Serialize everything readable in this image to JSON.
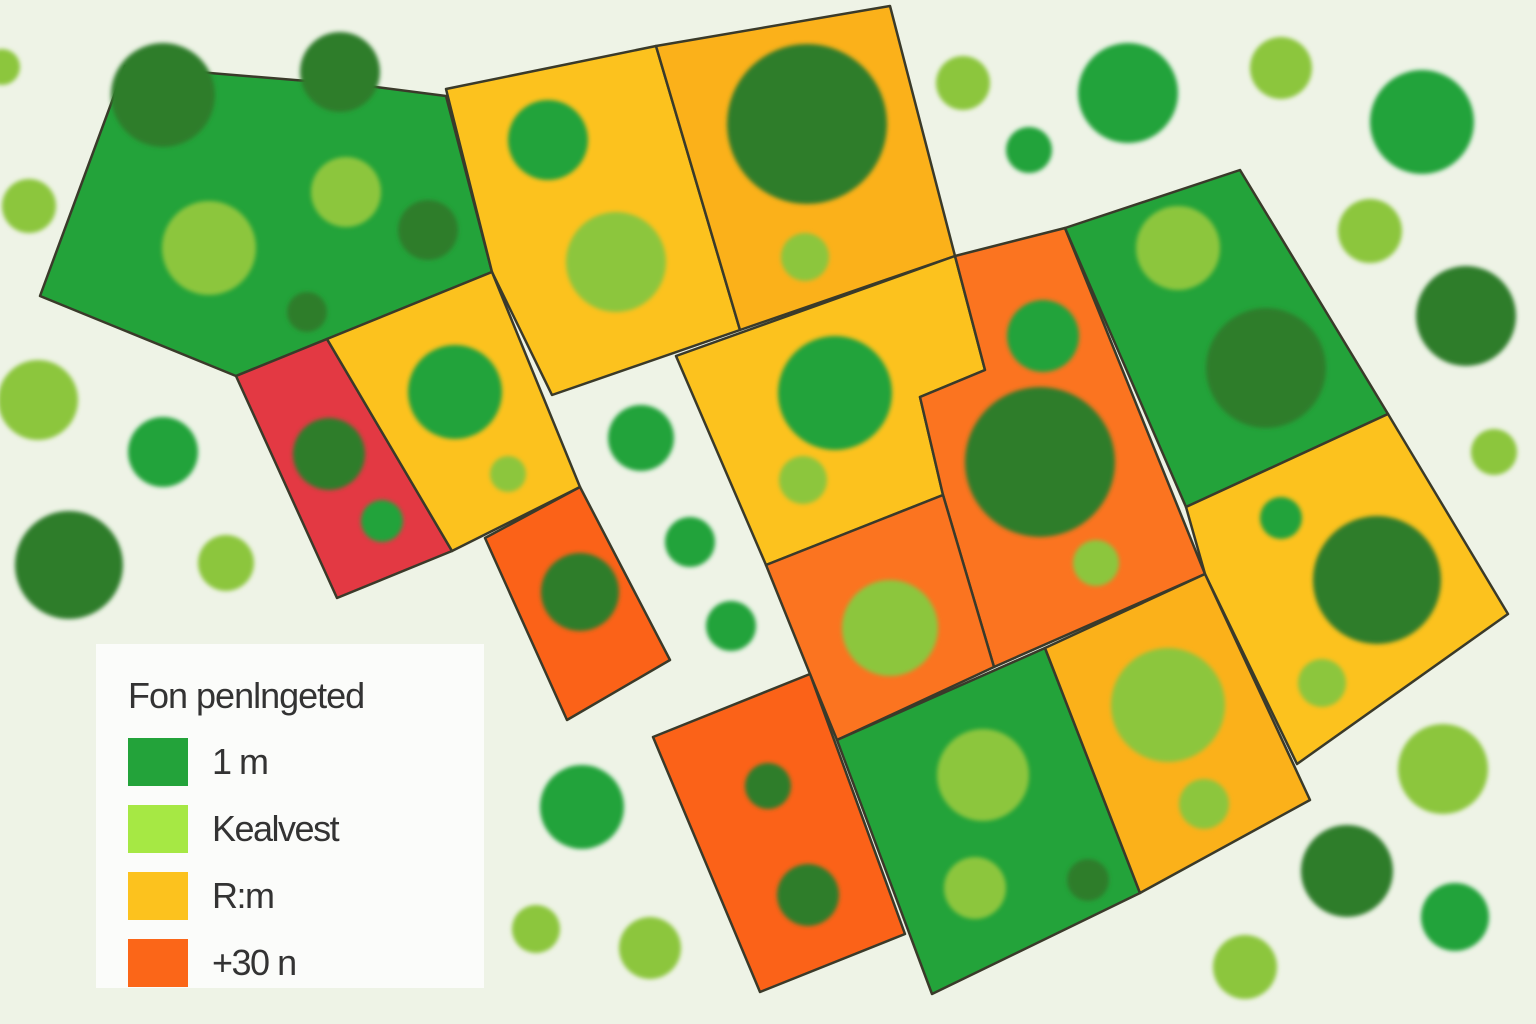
{
  "colors": {
    "background": "#eef3e6",
    "dark_green": "#2e7d2a",
    "green": "#23a33a",
    "light_green": "#8cc63c",
    "yellow": "#fcc21e",
    "orange_yellow": "#fbb11a",
    "orange": "#fb7420",
    "deep_orange": "#fb5e16",
    "red": "#e33943"
  },
  "legend": {
    "title": "Fon penlngeted",
    "items": [
      {
        "label": "1 m",
        "color": "#23a33a"
      },
      {
        "label": "Kealvest",
        "color": "#a6e844"
      },
      {
        "label": "R:m",
        "color": "#fcc21e"
      },
      {
        "label": "+30 n",
        "color": "#fb6618"
      }
    ]
  }
}
